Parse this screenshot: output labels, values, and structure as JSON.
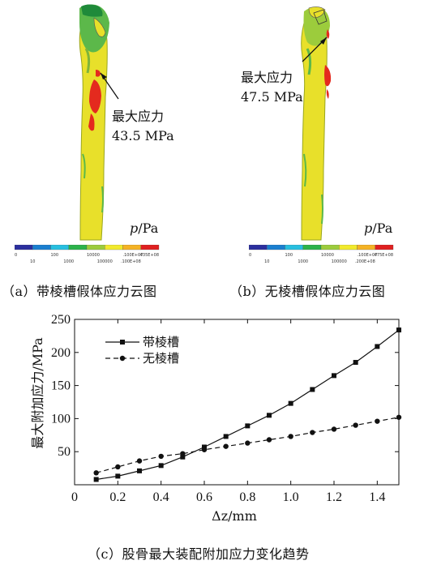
{
  "panel_a": {
    "annotation_line1": "最大应力",
    "annotation_line2": "43.5 MPa",
    "unit_var": "p",
    "unit_rest": "/Pa",
    "colorbar_top": [
      "0",
      "100",
      "10000",
      ".100E+07",
      ".435E+08"
    ],
    "colorbar_bottom": [
      "10",
      "1000",
      "100000",
      ".100E+08"
    ],
    "caption": "（a）带棱槽假体应力云图"
  },
  "panel_b": {
    "annotation_line1": "最大应力",
    "annotation_line2": "47.5 MPa",
    "unit_var": "p",
    "unit_rest": "/Pa",
    "colorbar_top": [
      "0",
      "100",
      "10000",
      ".100E+07",
      ".475E+08"
    ],
    "colorbar_bottom": [
      "10",
      "1000",
      "100000",
      ".200E+08"
    ],
    "caption": "（b）无棱槽假体应力云图"
  },
  "colormap": [
    "#2b2f9e",
    "#1a7fd0",
    "#27bfe0",
    "#2bb34a",
    "#9ccc3c",
    "#f2ea2c",
    "#f5b324",
    "#e02020"
  ],
  "panel_c": {
    "caption": "（c）股骨最大装配附加应力变化趋势"
  },
  "chart_data": {
    "type": "line",
    "xlabel": "Δz/mm",
    "ylabel": "最大附加应力/MPa",
    "xlim": [
      0,
      1.5
    ],
    "ylim": [
      0,
      250
    ],
    "xticks": [
      "0",
      "0.2",
      "0.4",
      "0.6",
      "0.8",
      "1.0",
      "1.2",
      "1.4"
    ],
    "yticks": [
      "50",
      "100",
      "150",
      "200",
      "250"
    ],
    "x": [
      0.1,
      0.2,
      0.3,
      0.4,
      0.5,
      0.6,
      0.7,
      0.8,
      0.9,
      1.0,
      1.1,
      1.2,
      1.3,
      1.4,
      1.5
    ],
    "series": [
      {
        "name": "带棱槽",
        "marker": "square",
        "style": "solid",
        "values": [
          8,
          13,
          21,
          29,
          42,
          57,
          73,
          89,
          105,
          123,
          144,
          165,
          185,
          209,
          234
        ]
      },
      {
        "name": "无棱槽",
        "marker": "circle",
        "style": "dashed",
        "values": [
          18,
          27,
          36,
          43,
          47,
          53,
          58,
          63,
          68,
          73,
          79,
          84,
          90,
          96,
          102
        ]
      }
    ],
    "legend": "top-left",
    "grid": false
  }
}
